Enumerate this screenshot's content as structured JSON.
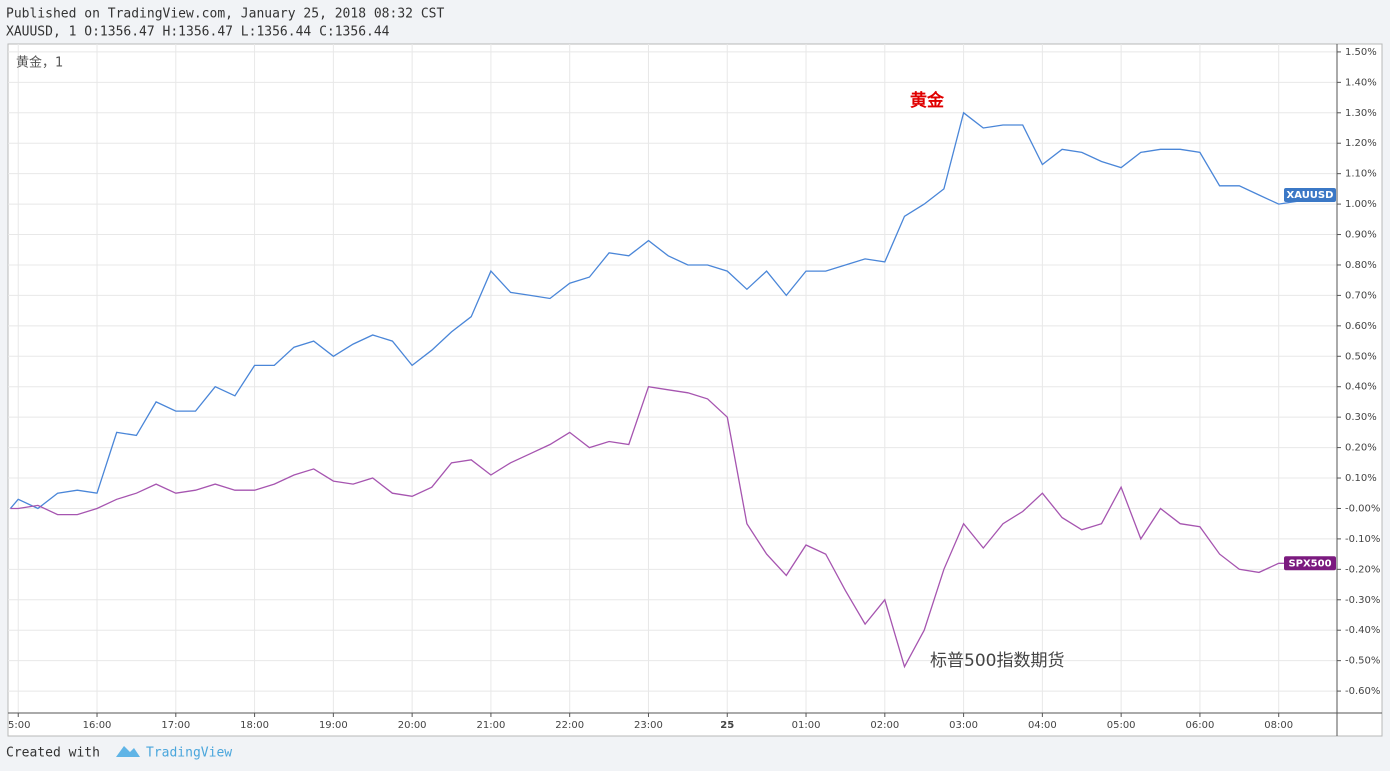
{
  "header": {
    "published": "Published on TradingView.com, January 25, 2018 08:32 CST",
    "ohlc": "XAUUSD, 1 O:1356.47 H:1356.47 L:1356.44 C:1356.44"
  },
  "footer": {
    "created": "Created with",
    "brand": "TradingView"
  },
  "chart_data": {
    "type": "line",
    "legend": "黄金，1",
    "annotations": [
      "黄金",
      "标普500指数期货"
    ],
    "x": [
      -0.1,
      0,
      0.25,
      0.5,
      0.75,
      1,
      1.25,
      1.5,
      1.75,
      2,
      2.25,
      2.5,
      2.75,
      3,
      3.25,
      3.5,
      3.75,
      4,
      4.25,
      4.5,
      4.75,
      5,
      5.25,
      5.5,
      5.75,
      6,
      6.25,
      6.5,
      6.75,
      7,
      7.25,
      7.5,
      7.75,
      8,
      8.25,
      8.5,
      8.75,
      9,
      9.25,
      9.5,
      9.75,
      10,
      10.25,
      10.5,
      10.75,
      11,
      11.25,
      11.5,
      11.75,
      12,
      12.25,
      12.5,
      12.75,
      13,
      13.25,
      13.5,
      13.75,
      14,
      14.25,
      14.5,
      14.75,
      15,
      15.25,
      15.5,
      15.75,
      16,
      16.25,
      16.5
    ],
    "series": [
      {
        "name": "XAUUSD",
        "color": "#4a86d8",
        "tag_color": "#3b78c6",
        "values": [
          0.0,
          0.03,
          0.0,
          0.05,
          0.06,
          0.05,
          0.25,
          0.24,
          0.35,
          0.32,
          0.32,
          0.4,
          0.37,
          0.47,
          0.47,
          0.53,
          0.55,
          0.5,
          0.54,
          0.57,
          0.55,
          0.47,
          0.52,
          0.58,
          0.63,
          0.78,
          0.71,
          0.7,
          0.69,
          0.74,
          0.76,
          0.84,
          0.83,
          0.88,
          0.83,
          0.8,
          0.8,
          0.78,
          0.72,
          0.78,
          0.7,
          0.78,
          0.78,
          0.8,
          0.82,
          0.81,
          0.96,
          1.0,
          1.05,
          1.3,
          1.25,
          1.26,
          1.26,
          1.13,
          1.18,
          1.17,
          1.14,
          1.12,
          1.17,
          1.18,
          1.18,
          1.17,
          1.06,
          1.06,
          1.03,
          1.0,
          1.01,
          1.03
        ]
      },
      {
        "name": "SPX500",
        "color": "#a655b0",
        "tag_color": "#7b1a7f",
        "values": [
          0.0,
          0.0,
          0.01,
          -0.02,
          -0.02,
          0.0,
          0.03,
          0.05,
          0.08,
          0.05,
          0.06,
          0.08,
          0.06,
          0.06,
          0.08,
          0.11,
          0.13,
          0.09,
          0.08,
          0.1,
          0.05,
          0.04,
          0.07,
          0.15,
          0.16,
          0.11,
          0.15,
          0.18,
          0.21,
          0.25,
          0.2,
          0.22,
          0.21,
          0.4,
          0.39,
          0.38,
          0.36,
          0.3,
          -0.05,
          -0.15,
          -0.22,
          -0.12,
          -0.15,
          -0.27,
          -0.38,
          -0.3,
          -0.52,
          -0.4,
          -0.2,
          -0.05,
          -0.13,
          -0.05,
          -0.01,
          0.05,
          -0.03,
          -0.07,
          -0.05,
          0.07,
          -0.1,
          0.0,
          -0.05,
          -0.06,
          -0.15,
          -0.2,
          -0.21,
          -0.18,
          -0.18,
          -0.18
        ]
      }
    ],
    "xlim": [
      -0.13,
      16.74
    ],
    "xticks": [
      {
        "value": 0,
        "label": "5:00"
      },
      {
        "value": 1,
        "label": "16:00"
      },
      {
        "value": 2,
        "label": "17:00"
      },
      {
        "value": 3,
        "label": "18:00"
      },
      {
        "value": 4,
        "label": "19:00"
      },
      {
        "value": 5,
        "label": "20:00"
      },
      {
        "value": 6,
        "label": "21:00"
      },
      {
        "value": 7,
        "label": "22:00"
      },
      {
        "value": 8,
        "label": "23:00"
      },
      {
        "value": 9,
        "label": "25"
      },
      {
        "value": 10,
        "label": "01:00"
      },
      {
        "value": 11,
        "label": "02:00"
      },
      {
        "value": 12,
        "label": "03:00"
      },
      {
        "value": 13,
        "label": "04:00"
      },
      {
        "value": 14,
        "label": "05:00"
      },
      {
        "value": 15,
        "label": "06:00"
      },
      {
        "value": 16,
        "label": "08:00"
      }
    ],
    "ylim": [
      -0.672,
      1.526
    ],
    "yticks": [
      {
        "value": 1.5,
        "label": "1.50%"
      },
      {
        "value": 1.4,
        "label": "1.40%"
      },
      {
        "value": 1.3,
        "label": "1.30%"
      },
      {
        "value": 1.2,
        "label": "1.20%"
      },
      {
        "value": 1.1,
        "label": "1.10%"
      },
      {
        "value": 1.0,
        "label": "1.00%"
      },
      {
        "value": 0.9,
        "label": "0.90%"
      },
      {
        "value": 0.8,
        "label": "0.80%"
      },
      {
        "value": 0.7,
        "label": "0.70%"
      },
      {
        "value": 0.6,
        "label": "0.60%"
      },
      {
        "value": 0.5,
        "label": "0.50%"
      },
      {
        "value": 0.4,
        "label": "0.40%"
      },
      {
        "value": 0.3,
        "label": "0.30%"
      },
      {
        "value": 0.2,
        "label": "0.20%"
      },
      {
        "value": 0.1,
        "label": "0.10%"
      },
      {
        "value": 0,
        "label": "-0.00%"
      },
      {
        "value": -0.1,
        "label": "-0.10%"
      },
      {
        "value": -0.2,
        "label": "-0.20%"
      },
      {
        "value": -0.3,
        "label": "-0.30%"
      },
      {
        "value": -0.4,
        "label": "-0.40%"
      },
      {
        "value": -0.5,
        "label": "-0.50%"
      },
      {
        "value": -0.6,
        "label": "-0.60%"
      }
    ],
    "grid": true
  }
}
